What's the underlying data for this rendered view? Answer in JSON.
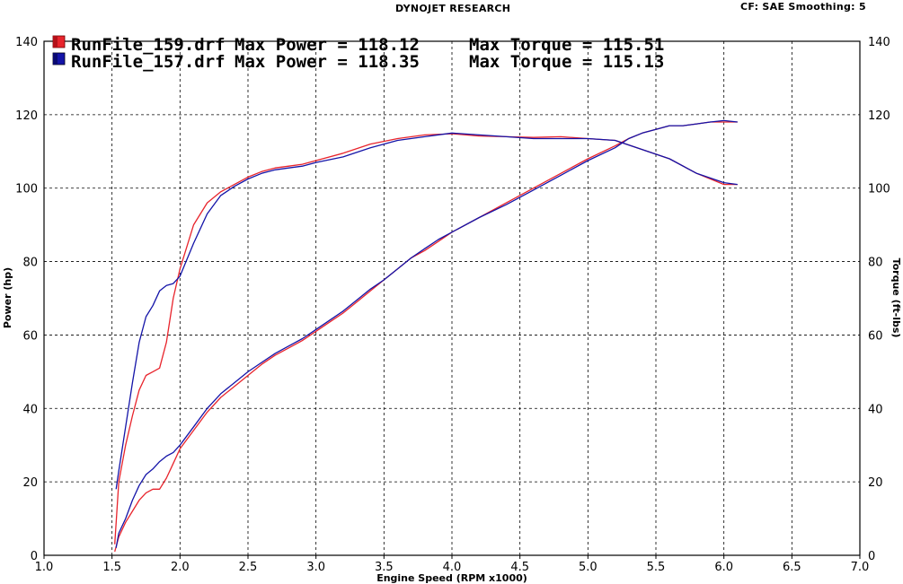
{
  "header": {
    "title": "DYNOJET RESEARCH",
    "settings": "CF: SAE  Smoothing: 5"
  },
  "legend": [
    {
      "file": "RunFile_159.drf",
      "power_text": "Max Power = 118.12",
      "torque_text": "Max Torque = 115.51",
      "color": "#e8242c"
    },
    {
      "file": "RunFile_157.drf",
      "power_text": "Max Power = 118.35",
      "torque_text": "Max Torque = 115.13",
      "color": "#1414a8"
    }
  ],
  "chart_data": {
    "type": "line",
    "xlabel": "Engine Speed (RPM x1000)",
    "ylabel": "Power (hp)",
    "y2label": "Torque (ft-lbs)",
    "xlim": [
      1.0,
      7.0
    ],
    "ylim": [
      0,
      140
    ],
    "y2lim": [
      0,
      140
    ],
    "xticks": [
      "1.0",
      "1.5",
      "2.0",
      "2.5",
      "3.0",
      "3.5",
      "4.0",
      "4.5",
      "5.0",
      "5.5",
      "6.0",
      "6.5",
      "7.0"
    ],
    "yticks": [
      "0",
      "20",
      "40",
      "60",
      "80",
      "100",
      "120",
      "140"
    ],
    "grid": true,
    "series": [
      {
        "name": "RunFile_159.drf",
        "measure": "Power",
        "color": "#e8242c",
        "x": [
          1.52,
          1.55,
          1.6,
          1.65,
          1.7,
          1.75,
          1.8,
          1.85,
          1.9,
          1.95,
          2.0,
          2.1,
          2.2,
          2.3,
          2.4,
          2.5,
          2.6,
          2.7,
          2.8,
          2.9,
          3.0,
          3.1,
          3.2,
          3.3,
          3.4,
          3.5,
          3.6,
          3.7,
          3.8,
          3.9,
          4.0,
          4.2,
          4.4,
          4.6,
          4.8,
          5.0,
          5.2,
          5.3,
          5.4,
          5.5,
          5.6,
          5.7,
          5.8,
          5.9,
          6.0,
          6.1
        ],
        "y": [
          1,
          5,
          9,
          12,
          15,
          17,
          18,
          18,
          21,
          25,
          29,
          34,
          39,
          43,
          46,
          49,
          52,
          54.5,
          56.5,
          58.5,
          61,
          63.5,
          66,
          69,
          72,
          75,
          78,
          81,
          83,
          85.5,
          88,
          92,
          96,
          100,
          104,
          108,
          111.5,
          113.5,
          115,
          116,
          117,
          117,
          117.5,
          118,
          118,
          118
        ]
      },
      {
        "name": "RunFile_157.drf",
        "measure": "Power",
        "color": "#1414a8",
        "x": [
          1.53,
          1.55,
          1.6,
          1.65,
          1.7,
          1.75,
          1.8,
          1.85,
          1.9,
          1.95,
          2.0,
          2.1,
          2.2,
          2.3,
          2.4,
          2.5,
          2.6,
          2.7,
          2.8,
          2.9,
          3.0,
          3.1,
          3.2,
          3.3,
          3.4,
          3.5,
          3.6,
          3.7,
          3.8,
          3.9,
          4.0,
          4.2,
          4.4,
          4.6,
          4.8,
          5.0,
          5.2,
          5.3,
          5.4,
          5.5,
          5.6,
          5.7,
          5.8,
          5.9,
          6.0,
          6.1
        ],
        "y": [
          2,
          6,
          10,
          15,
          19,
          22,
          23.5,
          25.5,
          27,
          28,
          30,
          35,
          40,
          44,
          47,
          50,
          52.5,
          55,
          57,
          59,
          61.5,
          64,
          66.5,
          69.5,
          72.5,
          75,
          78,
          81,
          83.5,
          86,
          88,
          92,
          95.5,
          99.5,
          103.5,
          107.5,
          111,
          113.5,
          115,
          116,
          117,
          117,
          117.5,
          118,
          118.4,
          118
        ]
      },
      {
        "name": "RunFile_159.drf",
        "measure": "Torque",
        "color": "#e8242c",
        "x": [
          1.52,
          1.55,
          1.6,
          1.65,
          1.7,
          1.75,
          1.8,
          1.85,
          1.9,
          1.95,
          2.0,
          2.1,
          2.2,
          2.3,
          2.4,
          2.5,
          2.6,
          2.7,
          2.8,
          2.9,
          3.0,
          3.2,
          3.4,
          3.6,
          3.8,
          4.0,
          4.2,
          4.4,
          4.6,
          4.8,
          5.0,
          5.2,
          5.4,
          5.6,
          5.8,
          6.0,
          6.1
        ],
        "y": [
          3,
          20,
          30,
          38,
          45,
          49,
          50,
          51,
          58,
          70,
          78,
          90,
          96,
          99,
          101,
          103,
          104.5,
          105.5,
          106,
          106.5,
          107.5,
          109.5,
          112,
          113.5,
          114.5,
          114.8,
          114.2,
          114,
          113.8,
          114,
          113.5,
          113,
          110.5,
          108,
          104,
          101,
          101
        ]
      },
      {
        "name": "RunFile_157.drf",
        "measure": "Torque",
        "color": "#1414a8",
        "x": [
          1.53,
          1.55,
          1.6,
          1.65,
          1.7,
          1.75,
          1.8,
          1.85,
          1.9,
          1.95,
          2.0,
          2.1,
          2.2,
          2.3,
          2.4,
          2.5,
          2.6,
          2.7,
          2.8,
          2.9,
          3.0,
          3.2,
          3.4,
          3.6,
          3.8,
          4.0,
          4.2,
          4.4,
          4.6,
          4.8,
          5.0,
          5.2,
          5.4,
          5.6,
          5.8,
          6.0,
          6.1
        ],
        "y": [
          18,
          23,
          35,
          47,
          58,
          65,
          68,
          72,
          73.5,
          74,
          76,
          85,
          93,
          98,
          100.5,
          102.5,
          104,
          105,
          105.5,
          106,
          107,
          108.5,
          111,
          113,
          114,
          115,
          114.5,
          114,
          113.5,
          113.5,
          113.5,
          113,
          110.5,
          108,
          104,
          101.5,
          101
        ]
      }
    ]
  }
}
